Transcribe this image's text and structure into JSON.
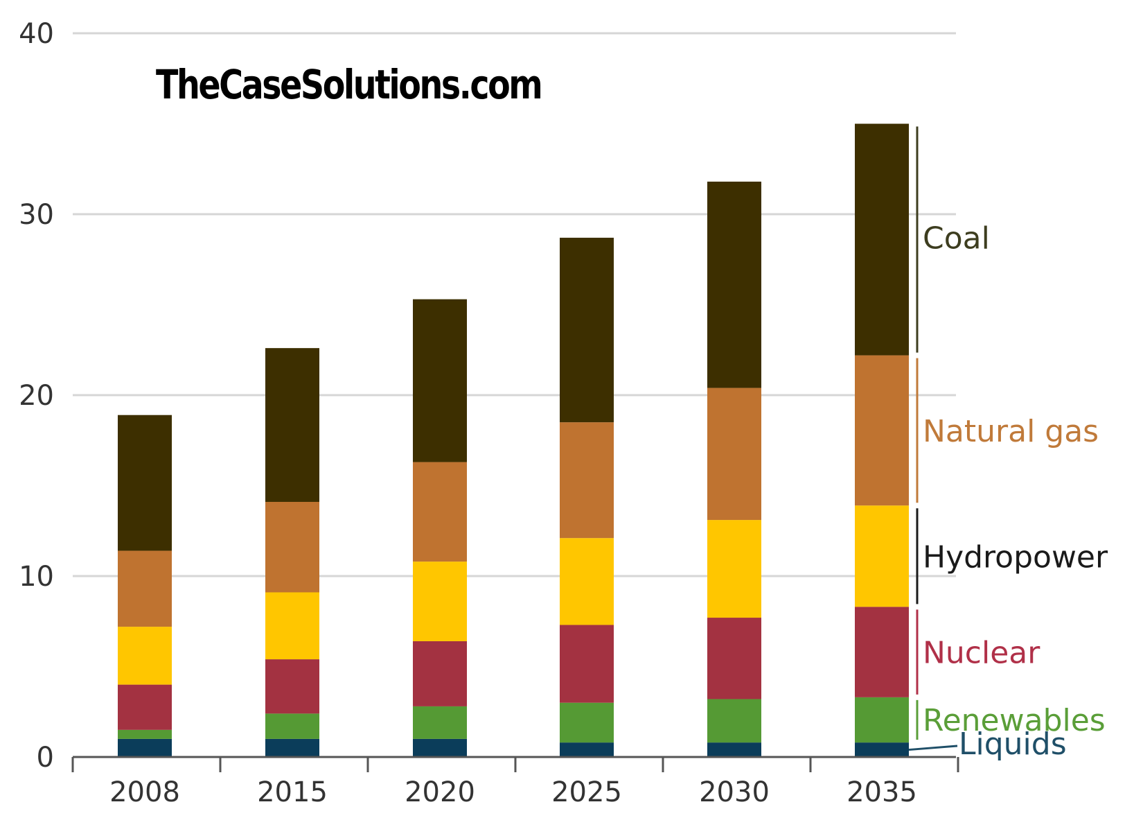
{
  "watermark": "TheCaseSolutions.com",
  "chart_data": {
    "type": "bar",
    "stacked": true,
    "categories": [
      "2008",
      "2015",
      "2020",
      "2025",
      "2030",
      "2035"
    ],
    "ylim": [
      0,
      40
    ],
    "yticks": [
      "0",
      "10",
      "20",
      "30",
      "40"
    ],
    "grid": true,
    "legend": "right, labels beside last bar",
    "series": [
      {
        "name": "Liquids",
        "color": "#0b3d5a",
        "values": [
          1.0,
          1.0,
          1.0,
          0.8,
          0.8,
          0.8
        ]
      },
      {
        "name": "Renewables",
        "color": "#559a34",
        "values": [
          0.5,
          1.4,
          1.8,
          2.2,
          2.4,
          2.5
        ]
      },
      {
        "name": "Nuclear",
        "color": "#a33241",
        "values": [
          2.5,
          3.0,
          3.6,
          4.3,
          4.5,
          5.0
        ]
      },
      {
        "name": "Hydropower",
        "color": "#ffc600",
        "values": [
          3.2,
          3.7,
          4.4,
          4.8,
          5.4,
          5.6
        ]
      },
      {
        "name": "Natural gas",
        "color": "#bf7330",
        "values": [
          4.2,
          5.0,
          5.5,
          6.4,
          7.3,
          8.3
        ]
      },
      {
        "name": "Coal",
        "color": "#3d2f00",
        "values": [
          7.5,
          8.5,
          9.0,
          10.2,
          11.4,
          12.8
        ]
      }
    ]
  },
  "label_colors": {
    "Coal": "#3d3d1f",
    "Natural gas": "#c07a3a",
    "Hydropower": "#1a1a1a",
    "Nuclear": "#b03048",
    "Renewables": "#5a9e38",
    "Liquids": "#1f4f68"
  }
}
